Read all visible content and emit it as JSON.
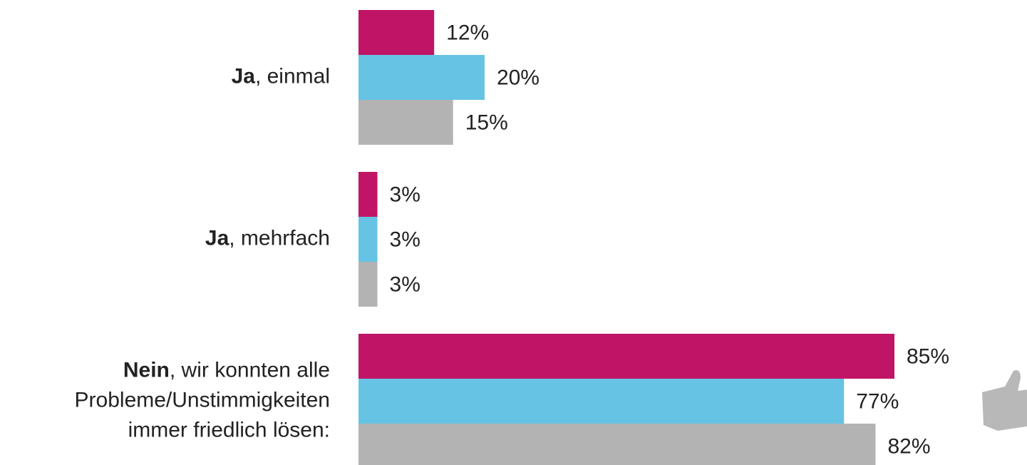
{
  "chart_data": {
    "type": "hbar",
    "categories": [
      {
        "bold": "Ja",
        "lines": [
          ", einmal"
        ]
      },
      {
        "bold": "Ja",
        "lines": [
          ", mehrfach"
        ]
      },
      {
        "bold": "Nein",
        "lines": [
          ", wir konnten alle",
          "Probleme/Unstimmigkeiten",
          "immer friedlich lösen:"
        ]
      }
    ],
    "series": [
      {
        "color": "#c01566",
        "values": [
          12,
          3,
          85
        ],
        "value_labels": [
          "12%",
          "3%",
          "85%"
        ]
      },
      {
        "color": "#66c3e3",
        "values": [
          20,
          3,
          77
        ],
        "value_labels": [
          "20%",
          "3%",
          "77%"
        ]
      },
      {
        "color": "#b3b3b3",
        "values": [
          15,
          3,
          82
        ],
        "value_labels": [
          "15%",
          "3%",
          "82%"
        ]
      }
    ],
    "xlim": [
      0,
      100
    ]
  }
}
